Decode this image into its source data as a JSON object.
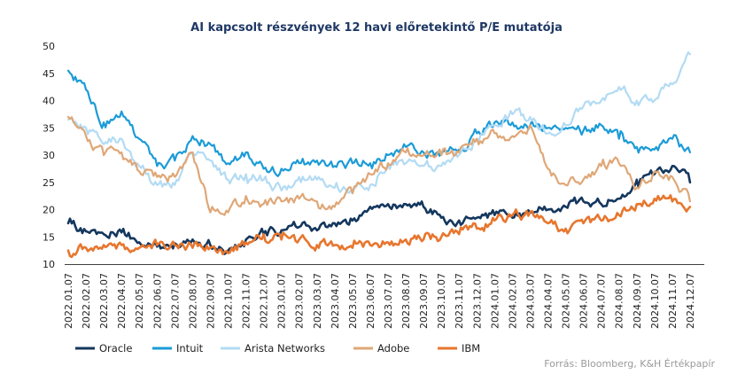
{
  "chart_data": {
    "type": "line",
    "title": "AI kapcsolt részvények 12 havi előretekintő P/E mutatója",
    "source": "Forrás: Bloomberg, K&H Értékpapír",
    "xlabel": "",
    "ylabel": "",
    "ylim": [
      10,
      50
    ],
    "yticks": [
      10,
      15,
      20,
      25,
      30,
      35,
      40,
      45,
      50
    ],
    "grid": false,
    "legend_position": "bottom",
    "x": [
      "2022.01.07",
      "2022.02.07",
      "2022.03.07",
      "2022.04.07",
      "2022.05.07",
      "2022.06.07",
      "2022.07.07",
      "2022.08.07",
      "2022.09.07",
      "2022.10.07",
      "2022.11.07",
      "2022.12.07",
      "2023.01.07",
      "2023.02.07",
      "2023.03.07",
      "2023.04.07",
      "2023.05.07",
      "2023.06.07",
      "2023.07.07",
      "2023.08.07",
      "2023.09.07",
      "2023.10.07",
      "2023.11.07",
      "2023.12.07",
      "2024.01.07",
      "2024.02.07",
      "2024.03.07",
      "2024.04.07",
      "2024.05.07",
      "2024.06.07",
      "2024.07.07",
      "2024.08.07",
      "2024.09.07",
      "2024.10.07",
      "2024.11.07",
      "2024.12.07"
    ],
    "series": [
      {
        "name": "Oracle",
        "color": "#14375e",
        "width": 2.6,
        "values": [
          17.5,
          16.0,
          15.5,
          15.8,
          14.0,
          13.2,
          13.8,
          14.5,
          13.5,
          12.5,
          14.5,
          15.5,
          16.2,
          16.8,
          16.2,
          17.5,
          18.0,
          20.5,
          21.0,
          21.0,
          20.5,
          18.5,
          18.0,
          18.5,
          19.0,
          18.5,
          19.5,
          20.0,
          20.5,
          21.5,
          21.0,
          22.0,
          25.5,
          26.5,
          28.0,
          25.0
        ]
      },
      {
        "name": "Intuit",
        "color": "#1b9bd7",
        "width": 2.2,
        "values": [
          45.5,
          42.0,
          36.0,
          38.0,
          33.0,
          28.0,
          29.0,
          33.5,
          32.0,
          28.5,
          30.5,
          27.5,
          27.5,
          28.5,
          29.0,
          28.0,
          28.5,
          28.5,
          30.0,
          31.5,
          30.5,
          30.5,
          31.0,
          34.0,
          36.0,
          36.0,
          35.5,
          35.0,
          35.0,
          34.5,
          35.5,
          33.0,
          31.5,
          31.0,
          33.0,
          30.5
        ]
      },
      {
        "name": "Arista Networks",
        "color": "#b3dbf3",
        "width": 2.2,
        "values": [
          36.5,
          35.0,
          32.0,
          33.0,
          28.0,
          24.5,
          24.5,
          30.5,
          29.0,
          25.5,
          26.5,
          25.5,
          23.5,
          26.0,
          25.5,
          24.0,
          23.0,
          24.5,
          28.0,
          28.5,
          28.0,
          28.0,
          30.0,
          33.0,
          35.5,
          37.5,
          37.0,
          34.0,
          35.5,
          39.0,
          40.0,
          42.5,
          40.0,
          40.0,
          43.0,
          48.5
        ]
      },
      {
        "name": "Adobe",
        "color": "#dfa777",
        "width": 2.2,
        "values": [
          37.0,
          33.5,
          30.0,
          30.5,
          27.0,
          26.0,
          26.0,
          30.5,
          19.5,
          19.5,
          22.5,
          21.0,
          21.5,
          22.0,
          21.5,
          20.5,
          23.0,
          26.5,
          28.5,
          30.5,
          30.0,
          30.0,
          30.5,
          33.0,
          34.0,
          33.5,
          35.5,
          27.5,
          24.5,
          25.5,
          28.0,
          28.5,
          24.0,
          27.0,
          26.0,
          21.5
        ]
      },
      {
        "name": "IBM",
        "color": "#e7762e",
        "width": 2.6,
        "values": [
          12.5,
          13.0,
          13.5,
          13.5,
          13.0,
          13.5,
          13.5,
          13.0,
          13.0,
          12.0,
          14.0,
          15.5,
          14.5,
          14.5,
          13.5,
          13.5,
          13.0,
          13.5,
          14.0,
          14.5,
          14.5,
          15.0,
          15.5,
          16.5,
          18.0,
          19.0,
          19.5,
          17.5,
          16.5,
          17.5,
          18.0,
          19.0,
          21.0,
          22.0,
          21.5,
          20.5
        ]
      }
    ]
  }
}
